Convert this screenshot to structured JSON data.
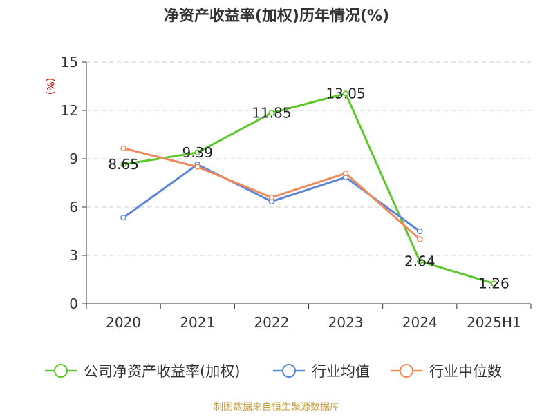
{
  "chart_data": {
    "type": "line",
    "title": "净资产收益率(加权)历年情况(%)",
    "ylabel": "(%)",
    "xlabel": "",
    "categories": [
      "2020",
      "2021",
      "2022",
      "2023",
      "2024",
      "2025H1"
    ],
    "ylim": [
      0,
      15
    ],
    "yticks": [
      0,
      3,
      6,
      9,
      12,
      15
    ],
    "grid": true,
    "legend_position": "bottom",
    "series": [
      {
        "name": "公司净资产收益率(加权)",
        "color": "#5cc72a",
        "values": [
          8.65,
          9.39,
          11.85,
          13.05,
          2.64,
          1.26
        ],
        "data_labels": [
          "8.65",
          "9.39",
          "11.85",
          "13.05",
          "2.64",
          "1.26"
        ]
      },
      {
        "name": "行业均值",
        "color": "#5b87d6",
        "values": [
          5.35,
          8.65,
          6.35,
          7.85,
          4.5,
          null
        ]
      },
      {
        "name": "行业中位数",
        "color": "#f08a5a",
        "values": [
          9.65,
          8.5,
          6.6,
          8.1,
          4.0,
          null
        ]
      }
    ]
  },
  "footer": {
    "source": "制图数据来自恒生聚源数据库"
  }
}
